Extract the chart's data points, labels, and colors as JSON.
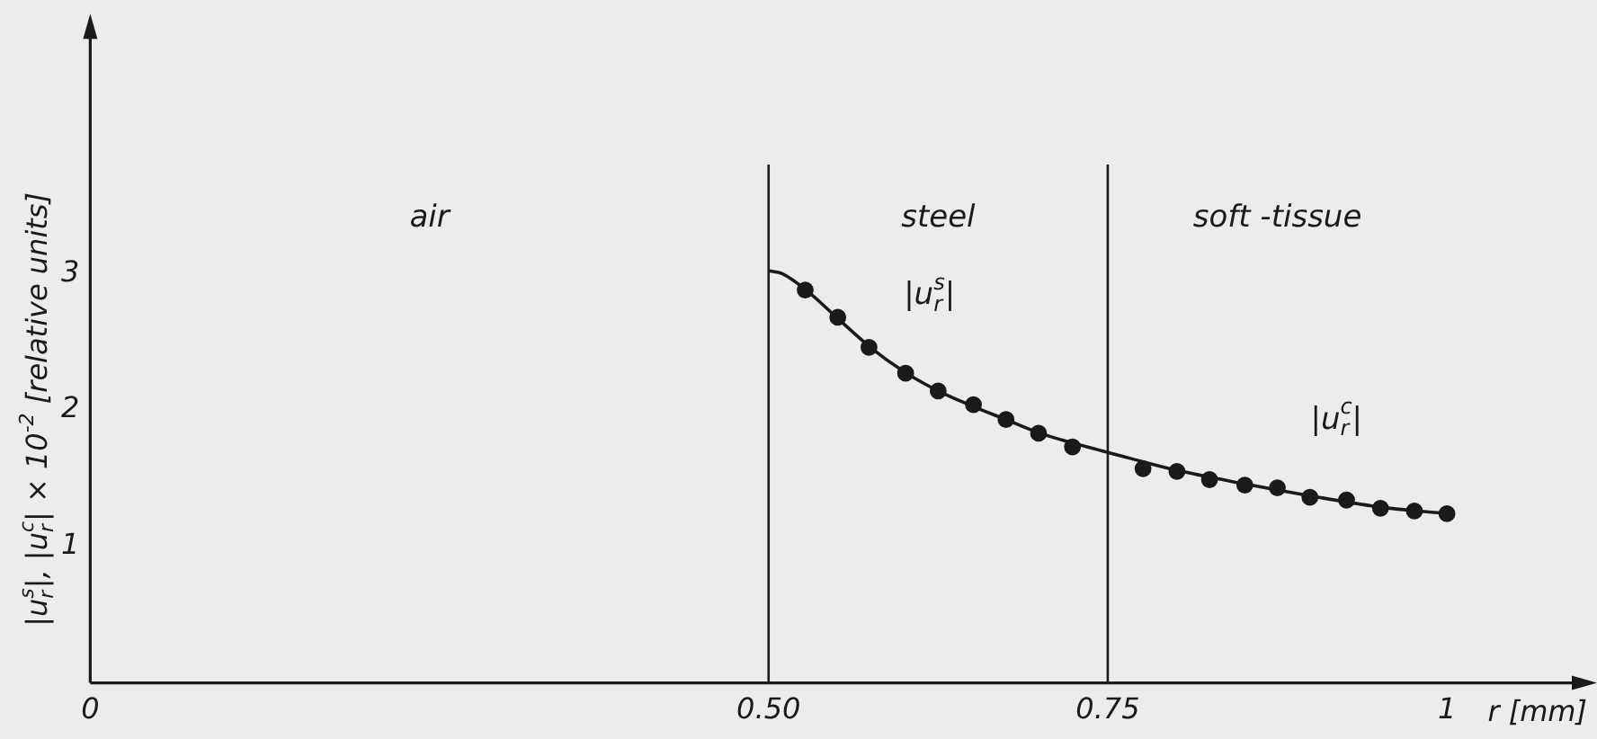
{
  "chart_data": {
    "type": "line",
    "xlabel": "r [mm]",
    "ylabel": "|u$_{r}$$^{s}$|, |u$_{r}$$^{c}$| × 10$^{-2}$ [relative units]",
    "xlim": [
      0,
      1.1
    ],
    "ylim": [
      0,
      4.8
    ],
    "xticks": [
      {
        "value": 0,
        "label": "0"
      },
      {
        "value": 0.5,
        "label": "0.50"
      },
      {
        "value": 0.75,
        "label": "0.75"
      },
      {
        "value": 1,
        "label": "1"
      }
    ],
    "yticks": [
      1,
      2,
      3
    ],
    "grid": false,
    "legend": false,
    "ref_lines": [
      {
        "axis": "x",
        "value": 0.5,
        "color": "#1a1a1a"
      },
      {
        "axis": "x",
        "value": 0.75,
        "color": "#1a1a1a"
      }
    ],
    "annotations": [
      "air",
      "steel",
      "soft -tissue"
    ],
    "series": [
      {
        "name": "|u$_{r}$$^{s}$|",
        "marker": "none",
        "line_style": "solid",
        "color": "#1a1a1a",
        "x": [
          0.5,
          0.51,
          0.53,
          0.55,
          0.575,
          0.6,
          0.625,
          0.65,
          0.675,
          0.7,
          0.75
        ],
        "values": [
          3.02,
          3.0,
          2.86,
          2.68,
          2.46,
          2.28,
          2.14,
          2.03,
          1.93,
          1.83,
          1.69
        ]
      },
      {
        "name": "|u$_{r}$$^{c}$|",
        "marker": "none",
        "line_style": "solid",
        "color": "#1a1a1a",
        "x": [
          0.75,
          0.8,
          0.85,
          0.9,
          0.95,
          1.0
        ],
        "values": [
          1.69,
          1.56,
          1.46,
          1.37,
          1.29,
          1.24
        ]
      },
      {
        "type": "scatter",
        "marker": "circle",
        "color": "#1a1a1a",
        "x": [
          0.527,
          0.551,
          0.574,
          0.601,
          0.625,
          0.651,
          0.675,
          0.699,
          0.724
        ],
        "values": [
          2.88,
          2.68,
          2.46,
          2.27,
          2.14,
          2.04,
          1.93,
          1.83,
          1.73
        ]
      },
      {
        "type": "scatter",
        "marker": "circle",
        "color": "#1a1a1a",
        "x": [
          0.776,
          0.801,
          0.825,
          0.851,
          0.875,
          0.899,
          0.926,
          0.951,
          0.976,
          1.0
        ],
        "values": [
          1.57,
          1.55,
          1.49,
          1.45,
          1.43,
          1.36,
          1.34,
          1.28,
          1.26,
          1.24
        ]
      }
    ]
  }
}
